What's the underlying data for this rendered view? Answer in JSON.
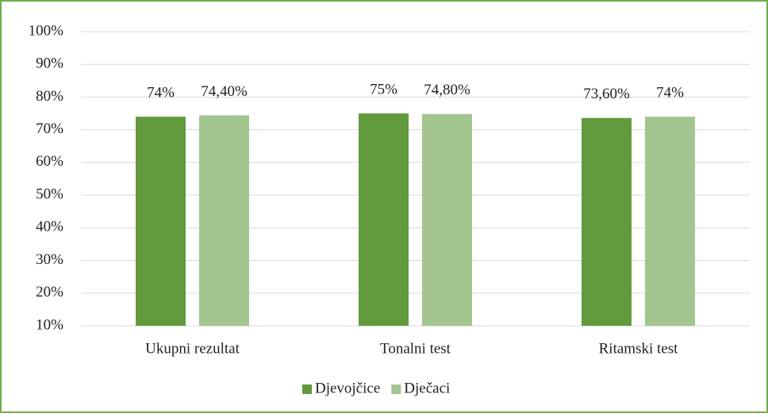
{
  "chart_data": {
    "type": "bar",
    "categories": [
      "Ukupni rezultat",
      "Tonalni test",
      "Ritamski test"
    ],
    "series": [
      {
        "name": "Djevojčice",
        "color": "#629a3d",
        "values": [
          74,
          75,
          73.6
        ],
        "value_labels": [
          "74%",
          "75%",
          "73,60%"
        ]
      },
      {
        "name": "Dječaci",
        "color": "#a3c58f",
        "values": [
          74.4,
          74.8,
          74
        ],
        "value_labels": [
          "74,40%",
          "74,80%",
          "74%"
        ]
      }
    ],
    "ylim": [
      10,
      100
    ],
    "yticks": [
      {
        "value": 10,
        "label": "10%"
      },
      {
        "value": 20,
        "label": "20%"
      },
      {
        "value": 30,
        "label": "30%"
      },
      {
        "value": 40,
        "label": "40%"
      },
      {
        "value": 50,
        "label": "50%"
      },
      {
        "value": 60,
        "label": "60%"
      },
      {
        "value": 70,
        "label": "70%"
      },
      {
        "value": 80,
        "label": "80%"
      },
      {
        "value": 90,
        "label": "90%"
      },
      {
        "value": 100,
        "label": "100%"
      }
    ],
    "grid": true,
    "legend": "bottom"
  }
}
